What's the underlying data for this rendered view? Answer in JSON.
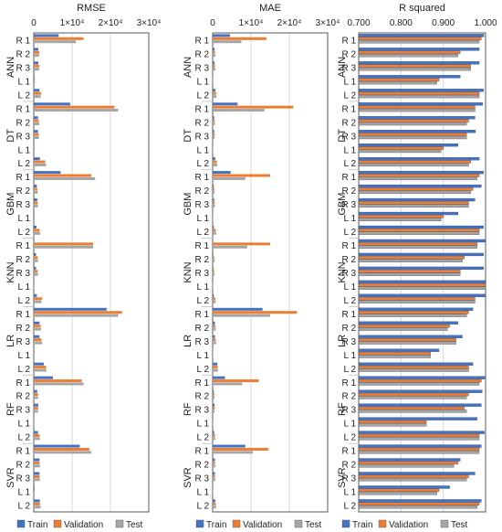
{
  "chart_data": [
    {
      "type": "bar",
      "orientation": "horizontal",
      "title": "RMSE",
      "tick_labels": [
        "0",
        "1×10⁴",
        "2×10⁴",
        "3×10⁴"
      ],
      "xlim": [
        0,
        30000
      ],
      "grid": true,
      "groups": [
        "ANN",
        "DT",
        "GBM",
        "KNN",
        "LR",
        "RF",
        "SVR"
      ],
      "subcategories": [
        "R 1",
        "R 2",
        "R 3",
        "L 1",
        "L 2"
      ],
      "series": [
        {
          "name": "Train",
          "color": "#4472C4",
          "values": [
            6500,
            1200,
            1200,
            200,
            1500,
            9500,
            1100,
            1100,
            150,
            1600,
            7000,
            800,
            900,
            150,
            700,
            0,
            600,
            600,
            100,
            800,
            19000,
            1500,
            1500,
            150,
            2600,
            5000,
            900,
            1200,
            100,
            1100,
            12000,
            1500,
            1500,
            200,
            1600
          ]
        },
        {
          "name": "Validation",
          "color": "#ED7D31",
          "values": [
            13000,
            1400,
            1400,
            300,
            1900,
            21000,
            1300,
            1300,
            200,
            3000,
            15000,
            900,
            1000,
            200,
            1500,
            15500,
            1000,
            1000,
            150,
            2200,
            23000,
            1800,
            2000,
            200,
            3200,
            12500,
            1100,
            1100,
            150,
            1500,
            14500,
            1500,
            1500,
            250,
            1600
          ]
        },
        {
          "name": "Test",
          "color": "#A5A5A5",
          "values": [
            11000,
            1400,
            1400,
            300,
            1800,
            22000,
            1400,
            1300,
            200,
            3200,
            16000,
            1000,
            1100,
            200,
            1700,
            15500,
            1100,
            1100,
            150,
            2000,
            22000,
            1900,
            2200,
            200,
            3300,
            13000,
            1100,
            1100,
            150,
            1600,
            15000,
            1600,
            1600,
            200,
            1800
          ]
        }
      ]
    },
    {
      "type": "bar",
      "orientation": "horizontal",
      "title": "MAE",
      "tick_labels": [
        "0",
        "1×10⁴",
        "2×10⁴",
        "3×10⁴"
      ],
      "xlim": [
        0,
        30000
      ],
      "grid": true,
      "groups": [
        "ANN",
        "DT",
        "GBM",
        "KNN",
        "LR",
        "RF",
        "SVR"
      ],
      "subcategories": [
        "R 1",
        "R 2",
        "R 3",
        "L 1",
        "L 2"
      ],
      "series": [
        {
          "name": "Train",
          "color": "#4472C4",
          "values": [
            4500,
            500,
            500,
            100,
            700,
            6500,
            400,
            400,
            100,
            700,
            4700,
            300,
            400,
            100,
            300,
            0,
            200,
            200,
            50,
            300,
            13000,
            600,
            600,
            100,
            1200,
            3200,
            300,
            500,
            50,
            400,
            8500,
            600,
            600,
            100,
            700
          ]
        },
        {
          "name": "Validation",
          "color": "#ED7D31",
          "values": [
            14000,
            600,
            600,
            100,
            900,
            21000,
            500,
            500,
            100,
            1100,
            15000,
            400,
            500,
            100,
            800,
            15000,
            400,
            400,
            100,
            700,
            22000,
            700,
            800,
            100,
            1300,
            12000,
            400,
            500,
            100,
            600,
            14500,
            600,
            600,
            100,
            800
          ]
        },
        {
          "name": "Test",
          "color": "#A5A5A5",
          "values": [
            7500,
            700,
            700,
            150,
            1000,
            13500,
            600,
            500,
            100,
            1200,
            8500,
            500,
            600,
            100,
            900,
            9000,
            500,
            500,
            100,
            800,
            15000,
            800,
            900,
            100,
            1400,
            7700,
            500,
            500,
            100,
            700,
            10500,
            700,
            700,
            100,
            900
          ]
        }
      ]
    },
    {
      "type": "bar",
      "orientation": "horizontal",
      "title": "R squared",
      "tick_labels": [
        "0.700",
        "0.800",
        "0.900",
        "1.000"
      ],
      "xlim": [
        0.7,
        1.0
      ],
      "grid": true,
      "groups": [
        "ANN",
        "DT",
        "GBM",
        "KNN",
        "LR",
        "RF",
        "SVR"
      ],
      "subcategories": [
        "R 1",
        "R 2",
        "R 3",
        "L 1",
        "L 2"
      ],
      "series": [
        {
          "name": "Train",
          "color": "#4472C4",
          "values": [
            0.996,
            0.985,
            0.985,
            0.94,
            0.995,
            0.993,
            0.975,
            0.976,
            0.935,
            0.985,
            0.995,
            0.99,
            0.975,
            0.935,
            0.995,
            1.0,
            0.995,
            0.995,
            1.0,
            1.0,
            0.97,
            0.935,
            0.945,
            0.89,
            0.97,
            0.998,
            0.992,
            0.99,
            0.98,
            0.997,
            0.99,
            0.94,
            0.975,
            0.915,
            0.99
          ]
        },
        {
          "name": "Validation",
          "color": "#ED7D31",
          "values": [
            0.99,
            0.94,
            0.965,
            0.89,
            0.985,
            0.975,
            0.96,
            0.955,
            0.9,
            0.965,
            0.985,
            0.97,
            0.96,
            0.9,
            0.985,
            0.98,
            0.95,
            0.94,
            1.0,
            0.975,
            0.96,
            0.915,
            0.93,
            0.87,
            0.96,
            0.99,
            0.96,
            0.95,
            0.86,
            0.985,
            0.985,
            0.935,
            0.96,
            0.89,
            0.985
          ]
        },
        {
          "name": "Test",
          "color": "#A5A5A5",
          "values": [
            0.985,
            0.935,
            0.965,
            0.885,
            0.985,
            0.975,
            0.955,
            0.955,
            0.895,
            0.96,
            0.98,
            0.965,
            0.96,
            0.895,
            0.985,
            0.98,
            0.945,
            0.94,
            1.0,
            0.975,
            0.955,
            0.91,
            0.93,
            0.87,
            0.96,
            0.985,
            0.955,
            0.955,
            0.86,
            0.985,
            0.985,
            0.925,
            0.955,
            0.885,
            0.98
          ]
        }
      ]
    }
  ],
  "legend": [
    {
      "name": "Train",
      "color": "#4472C4"
    },
    {
      "name": "Validation",
      "color": "#ED7D31"
    },
    {
      "name": "Test",
      "color": "#A5A5A5"
    }
  ]
}
